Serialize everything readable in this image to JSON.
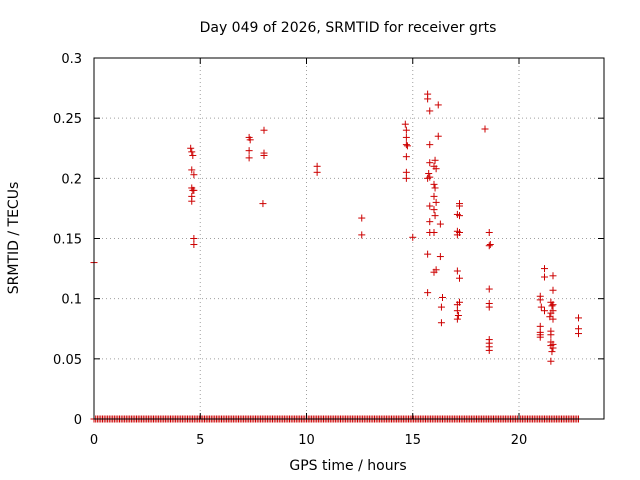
{
  "chart_data": {
    "type": "scatter",
    "title": "Day 049 of 2026, SRMTID for receiver grts",
    "xlabel": "GPS time / hours",
    "ylabel": "SRMTID / TECUs",
    "xlim": [
      0,
      24
    ],
    "ylim": [
      0,
      0.3
    ],
    "xticks": [
      0,
      5,
      10,
      15,
      20
    ],
    "yticks": [
      0,
      0.05,
      0.1,
      0.15,
      0.2,
      0.25,
      0.3
    ],
    "ytick_labels": [
      "0",
      "0.05",
      "0.1",
      "0.15",
      "0.2",
      "0.25",
      "0.3"
    ],
    "grid": true,
    "marker": "+",
    "color": "#cc0000",
    "zero_baseline": {
      "x_start": 0.0,
      "x_end": 22.8,
      "step": 0.08,
      "y": 0
    },
    "series": [
      {
        "name": "SRMTID",
        "points": [
          [
            0.0,
            0.13
          ],
          [
            4.55,
            0.225
          ],
          [
            4.6,
            0.222
          ],
          [
            4.65,
            0.219
          ],
          [
            4.6,
            0.207
          ],
          [
            4.7,
            0.203
          ],
          [
            4.6,
            0.192
          ],
          [
            4.65,
            0.19
          ],
          [
            4.7,
            0.19
          ],
          [
            4.6,
            0.185
          ],
          [
            4.6,
            0.181
          ],
          [
            4.7,
            0.15
          ],
          [
            4.7,
            0.145
          ],
          [
            7.3,
            0.234
          ],
          [
            7.35,
            0.232
          ],
          [
            7.3,
            0.223
          ],
          [
            7.3,
            0.217
          ],
          [
            8.0,
            0.24
          ],
          [
            8.0,
            0.221
          ],
          [
            8.0,
            0.219
          ],
          [
            7.95,
            0.179
          ],
          [
            10.5,
            0.21
          ],
          [
            10.5,
            0.205
          ],
          [
            12.6,
            0.167
          ],
          [
            12.6,
            0.153
          ],
          [
            14.65,
            0.245
          ],
          [
            14.7,
            0.24
          ],
          [
            14.7,
            0.234
          ],
          [
            14.7,
            0.228
          ],
          [
            14.75,
            0.227
          ],
          [
            14.7,
            0.218
          ],
          [
            14.7,
            0.205
          ],
          [
            14.7,
            0.2
          ],
          [
            15.0,
            0.151
          ],
          [
            15.7,
            0.27
          ],
          [
            15.7,
            0.266
          ],
          [
            15.8,
            0.256
          ],
          [
            15.8,
            0.228
          ],
          [
            15.8,
            0.213
          ],
          [
            15.75,
            0.204
          ],
          [
            15.8,
            0.201
          ],
          [
            15.7,
            0.2
          ],
          [
            15.8,
            0.177
          ],
          [
            15.8,
            0.164
          ],
          [
            15.8,
            0.155
          ],
          [
            15.7,
            0.137
          ],
          [
            15.7,
            0.105
          ],
          [
            16.05,
            0.215
          ],
          [
            16.0,
            0.21
          ],
          [
            16.1,
            0.208
          ],
          [
            16.0,
            0.195
          ],
          [
            16.05,
            0.192
          ],
          [
            16.0,
            0.185
          ],
          [
            16.1,
            0.18
          ],
          [
            16.0,
            0.174
          ],
          [
            16.05,
            0.169
          ],
          [
            16.0,
            0.155
          ],
          [
            16.1,
            0.124
          ],
          [
            16.0,
            0.122
          ],
          [
            16.2,
            0.261
          ],
          [
            16.2,
            0.235
          ],
          [
            16.3,
            0.162
          ],
          [
            16.3,
            0.135
          ],
          [
            16.4,
            0.101
          ],
          [
            16.35,
            0.093
          ],
          [
            16.35,
            0.08
          ],
          [
            17.2,
            0.179
          ],
          [
            17.2,
            0.177
          ],
          [
            17.1,
            0.17
          ],
          [
            17.2,
            0.169
          ],
          [
            17.1,
            0.156
          ],
          [
            17.2,
            0.155
          ],
          [
            17.1,
            0.153
          ],
          [
            17.1,
            0.123
          ],
          [
            17.2,
            0.117
          ],
          [
            17.2,
            0.097
          ],
          [
            17.1,
            0.095
          ],
          [
            17.1,
            0.09
          ],
          [
            17.15,
            0.086
          ],
          [
            17.1,
            0.083
          ],
          [
            18.4,
            0.241
          ],
          [
            18.6,
            0.155
          ],
          [
            18.65,
            0.145
          ],
          [
            18.6,
            0.144
          ],
          [
            18.6,
            0.108
          ],
          [
            18.6,
            0.096
          ],
          [
            18.6,
            0.093
          ],
          [
            18.6,
            0.066
          ],
          [
            18.6,
            0.063
          ],
          [
            18.6,
            0.06
          ],
          [
            18.6,
            0.057
          ],
          [
            21.0,
            0.102
          ],
          [
            21.0,
            0.099
          ],
          [
            21.05,
            0.093
          ],
          [
            21.0,
            0.077
          ],
          [
            21.0,
            0.072
          ],
          [
            21.0,
            0.07
          ],
          [
            21.0,
            0.068
          ],
          [
            21.2,
            0.09
          ],
          [
            21.2,
            0.125
          ],
          [
            21.2,
            0.118
          ],
          [
            21.5,
            0.097
          ],
          [
            21.55,
            0.094
          ],
          [
            21.5,
            0.088
          ],
          [
            21.45,
            0.085
          ],
          [
            21.5,
            0.073
          ],
          [
            21.5,
            0.07
          ],
          [
            21.5,
            0.064
          ],
          [
            21.5,
            0.061
          ],
          [
            21.55,
            0.056
          ],
          [
            21.5,
            0.048
          ],
          [
            21.6,
            0.119
          ],
          [
            21.6,
            0.107
          ],
          [
            21.6,
            0.095
          ],
          [
            21.6,
            0.09
          ],
          [
            21.6,
            0.083
          ],
          [
            21.6,
            0.062
          ],
          [
            21.6,
            0.059
          ],
          [
            22.8,
            0.084
          ],
          [
            22.8,
            0.075
          ],
          [
            22.8,
            0.071
          ]
        ]
      }
    ]
  }
}
